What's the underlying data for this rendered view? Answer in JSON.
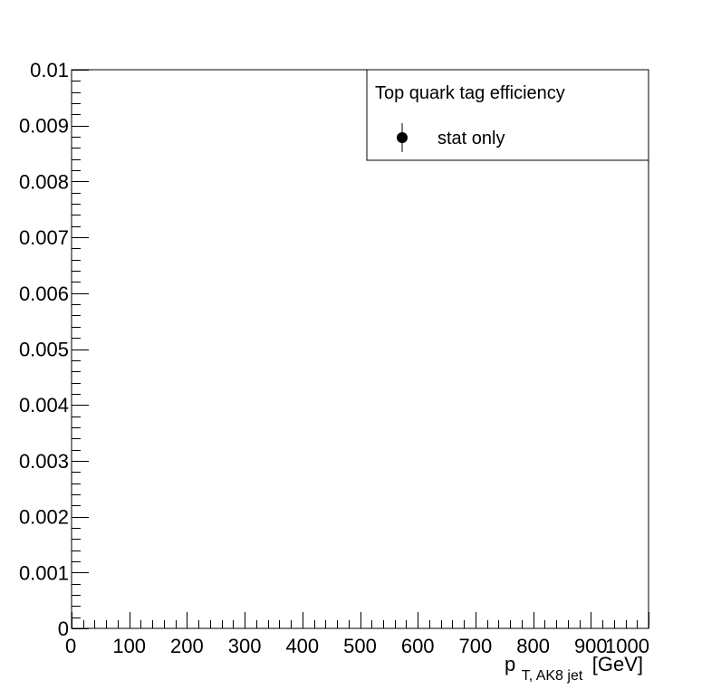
{
  "chart_data": {
    "type": "scatter",
    "xlabel": {
      "main": "p",
      "subscript": "T, AK8 jet",
      "unit": "[GeV]"
    },
    "ylabel": "",
    "xlim": [
      0,
      1000
    ],
    "ylim": [
      0,
      0.01
    ],
    "x_ticks": [
      0,
      100,
      200,
      300,
      400,
      500,
      600,
      700,
      800,
      900,
      1000
    ],
    "x_tick_labels": [
      "0",
      "100",
      "200",
      "300",
      "400",
      "500",
      "600",
      "700",
      "800",
      "900",
      "1000"
    ],
    "y_ticks": [
      0,
      0.001,
      0.002,
      0.003,
      0.004,
      0.005,
      0.006,
      0.007,
      0.008,
      0.009,
      0.01
    ],
    "y_tick_labels": [
      "0",
      "0.001",
      "0.002",
      "0.003",
      "0.004",
      "0.005",
      "0.006",
      "0.007",
      "0.008",
      "0.009",
      "0.01"
    ],
    "x_minor_per_major": 5,
    "y_minor_per_major": 5,
    "grid": false,
    "legend": {
      "placement": "top-right",
      "header": "Top quark tag efficiency",
      "entries": [
        {
          "label": "stat only",
          "marker": "filled-circle-with-error-bar"
        }
      ]
    },
    "series": [
      {
        "name": "stat only",
        "points": []
      }
    ]
  }
}
